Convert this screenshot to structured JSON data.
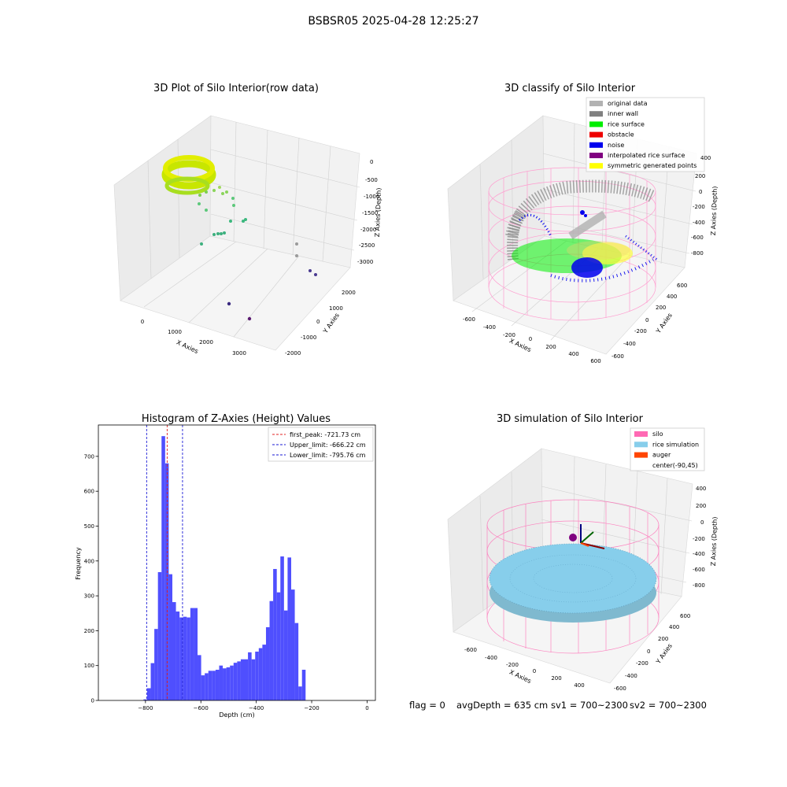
{
  "figure": {
    "suptitle": "BSBSR05 2025-04-28 12:25:27",
    "status": {
      "flag": "flag = 0",
      "avg_depth": "avgDepth = 635 cm",
      "sv1": "sv1 = 700~2300",
      "sv2": "sv2 = 700~2300"
    }
  },
  "colors": {
    "histogram_bar": "#4f4ffe",
    "first_peak": "#e02020",
    "limit_lines": "#1a1ad6",
    "original_data": "#b2b2b2",
    "inner_wall": "#808080",
    "rice_surface": "#00ee00",
    "obstacle": "#ee0000",
    "noise": "#0000ee",
    "interpolated_rice_surface": "#800080",
    "symmetric_generated_points": "#ffff00",
    "silo": "#ff69b4",
    "rice_simulation": "#87ceeb",
    "auger": "#ff4500"
  },
  "panel1": {
    "title": "3D Plot of Silo Interior(row data)",
    "xlabel": "X Axies",
    "ylabel": "Y Axies",
    "zlabel": "Z Axies (Depth)",
    "xticks": [
      "0",
      "1000",
      "2000",
      "3000"
    ],
    "yticks": [
      "-2000",
      "-1000",
      "0",
      "1000",
      "2000"
    ],
    "zticks": [
      "0",
      "-500",
      "-1000",
      "-1500",
      "-2000",
      "-2500",
      "-3000"
    ]
  },
  "panel2": {
    "title": "3D classify of Silo Interior",
    "xlabel": "X Axies",
    "ylabel": "Y Axies",
    "zlabel": "Z Axies (Depth)",
    "xticks": [
      "-600",
      "-400",
      "-200",
      "0",
      "200",
      "400",
      "600"
    ],
    "yticks": [
      "-600",
      "-400",
      "-200",
      "0",
      "200",
      "400",
      "600"
    ],
    "zticks": [
      "400",
      "200",
      "0",
      "-200",
      "-400",
      "-600",
      "-800"
    ],
    "legend": [
      {
        "label": "original data",
        "color": "#b2b2b2"
      },
      {
        "label": "inner wall",
        "color": "#808080"
      },
      {
        "label": "rice surface",
        "color": "#00ee00"
      },
      {
        "label": "obstacle",
        "color": "#ee0000"
      },
      {
        "label": "noise",
        "color": "#0000ee"
      },
      {
        "label": "interpolated rice surface",
        "color": "#800080"
      },
      {
        "label": "symmetric generated points",
        "color": "#ffff00"
      }
    ]
  },
  "panel4": {
    "title": "3D simulation of Silo Interior",
    "xlabel": "X Axies",
    "ylabel": "Y Axies",
    "zlabel": "Z Axies (Depth)",
    "xticks": [
      "-600",
      "-400",
      "-200",
      "0",
      "200",
      "400"
    ],
    "yticks": [
      "-600",
      "-400",
      "-200",
      "0",
      "200",
      "400",
      "600"
    ],
    "zticks": [
      "400",
      "200",
      "0",
      "-200",
      "-400",
      "-600",
      "-800"
    ],
    "legend": [
      {
        "label": "silo",
        "color": "#ff69b4"
      },
      {
        "label": "rice simulation",
        "color": "#87ceeb"
      },
      {
        "label": "auger",
        "color": "#ff4500"
      },
      {
        "label": "center(-90,45)",
        "color": ""
      }
    ]
  },
  "chart_data": [
    {
      "type": "bar",
      "title": "Histogram of Z-Axies (Height) Values",
      "xlabel": "Depth (cm)",
      "ylabel": "Frequency",
      "xlim": [
        -970,
        30
      ],
      "ylim": [
        0,
        790
      ],
      "xticks": [
        -800,
        -600,
        -400,
        -200,
        0
      ],
      "yticks": [
        0,
        100,
        200,
        300,
        400,
        500,
        600,
        700
      ],
      "bin_width": 13,
      "bin_starts": [
        -807,
        -794,
        -781,
        -768,
        -755,
        -742,
        -729,
        -716,
        -703,
        -690,
        -677,
        -664,
        -651,
        -638,
        -625,
        -612,
        -599,
        -586,
        -573,
        -560,
        -547,
        -534,
        -521,
        -508,
        -495,
        -482,
        -469,
        -456,
        -443,
        -430,
        -417,
        -404,
        -391,
        -378,
        -365,
        -352,
        -339,
        -326,
        -313,
        -300,
        -287,
        -274,
        -261,
        -248,
        -235,
        -222,
        -209,
        -196,
        -183,
        -170,
        -157,
        -144,
        -131,
        -118,
        -105,
        -92,
        -79,
        -66,
        -53,
        -40,
        -27,
        -14,
        -1
      ],
      "values": [
        3,
        35,
        107,
        205,
        368,
        758,
        680,
        362,
        282,
        255,
        238,
        240,
        238,
        265,
        265,
        130,
        72,
        78,
        85,
        85,
        88,
        100,
        92,
        95,
        100,
        108,
        112,
        118,
        118,
        138,
        118,
        140,
        150,
        160,
        210,
        285,
        377,
        310,
        413,
        258,
        410,
        318,
        222,
        40,
        88,
        0,
        0,
        0,
        0,
        0,
        0,
        0,
        0,
        0,
        0,
        0,
        0,
        0,
        0,
        0,
        0,
        0,
        0
      ],
      "vlines": [
        {
          "label": "first_peak: -721.73 cm",
          "x": -721.73,
          "color": "#e02020"
        },
        {
          "label": "Upper_limit: -666.22 cm",
          "x": -666.22,
          "color": "#1a1ad6"
        },
        {
          "label": "Lower_limit: -795.76 cm",
          "x": -795.76,
          "color": "#1a1ad6"
        }
      ],
      "legend_position": "top-right"
    }
  ]
}
